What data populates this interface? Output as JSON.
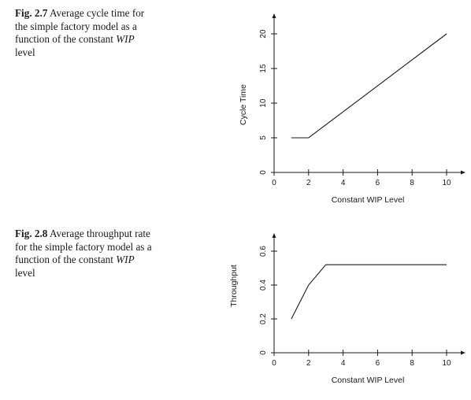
{
  "figures": [
    {
      "caption": {
        "number": "Fig. 2.7",
        "parts": [
          {
            "text": "Average cycle time for the simple factory model as a function of the constant ",
            "italic": false
          },
          {
            "text": "WIP",
            "italic": true
          },
          {
            "text": " level",
            "italic": false
          }
        ]
      },
      "chart_data": {
        "type": "line",
        "xlabel": "Constant WIP Level",
        "ylabel": "Cycle Time",
        "xlim": [
          0,
          11
        ],
        "ylim": [
          0,
          22
        ],
        "xticks": [
          0,
          2,
          4,
          6,
          8,
          10
        ],
        "yticks": [
          0,
          5,
          10,
          15,
          20
        ],
        "x": [
          1,
          2,
          10
        ],
        "y": [
          5,
          5,
          20
        ],
        "grid": false
      }
    },
    {
      "caption": {
        "number": "Fig. 2.8",
        "parts": [
          {
            "text": "Average throughput rate for the simple factory model as a function of the constant ",
            "italic": false
          },
          {
            "text": "WIP",
            "italic": true
          },
          {
            "text": " level",
            "italic": false
          }
        ]
      },
      "chart_data": {
        "type": "line",
        "xlabel": "Constant WIP Level",
        "ylabel": "Throughput",
        "xlim": [
          0,
          11
        ],
        "ylim": [
          0,
          0.7
        ],
        "xticks": [
          0,
          2,
          4,
          6,
          8,
          10
        ],
        "yticks": [
          0,
          0.2,
          0.4,
          0.6
        ],
        "x": [
          1,
          2,
          3,
          10
        ],
        "y": [
          0.2,
          0.4,
          0.52,
          0.52
        ],
        "grid": false
      }
    }
  ]
}
